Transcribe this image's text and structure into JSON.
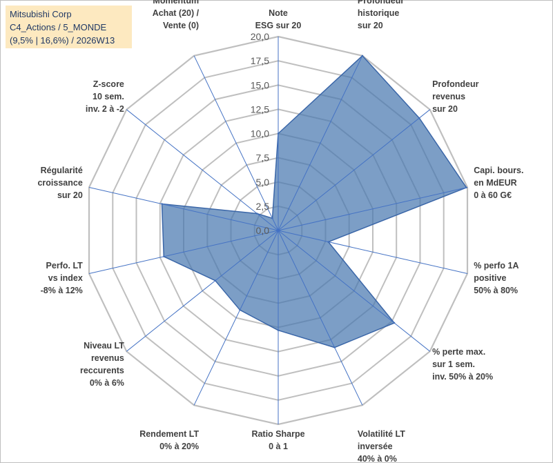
{
  "title_box": {
    "line1": "Mitsubishi Corp",
    "line2": "C4_Actions / 5_MONDE",
    "line3": "(9,5% | 16,6%) / 2026W13"
  },
  "chart_data": {
    "type": "radar",
    "title": "",
    "rlim": [
      0,
      20
    ],
    "grid": true,
    "tick_labels": [
      "0,0",
      "2,5",
      "5,0",
      "7,5",
      "10,0",
      "12,5",
      "15,0",
      "17,5",
      "20,0"
    ],
    "categories": [
      [
        "Note",
        "ESG sur 20"
      ],
      [
        "Profondeur",
        "historique",
        "sur 20"
      ],
      [
        "Profondeur",
        "revenus",
        "sur 20"
      ],
      [
        "Capi. bours.",
        "en MdEUR",
        "0 à 60 G€"
      ],
      [
        "% perfo 1A",
        "positive",
        "50% à 80%"
      ],
      [
        "% perte max.",
        "sur 1 sem.",
        "inv. 50% à 20%"
      ],
      [
        "Volatilité LT",
        "inversée",
        "40% à 0%"
      ],
      [
        "Ratio Sharpe",
        "0 à 1"
      ],
      [
        "Rendement LT",
        "0% à 20%"
      ],
      [
        "Niveau LT",
        "revenus",
        "reccurents",
        "0% à 6%"
      ],
      [
        "Perfo. LT",
        "vs index",
        "-8% à 12%"
      ],
      [
        "Régularité",
        "croissance",
        "sur 20"
      ],
      [
        "Z-score",
        "10 sem.",
        "inv. 2 à -2"
      ],
      [
        "Momentum",
        "Achat (20) /",
        "Vente (0)"
      ]
    ],
    "series": [
      {
        "values": [
          10,
          20,
          18.6,
          19.9,
          5.3,
          15.3,
          13.4,
          10.3,
          9.1,
          8.3,
          12.1,
          12.3,
          2.8,
          1.4
        ]
      }
    ],
    "colors": {
      "fill": "#4a78b0",
      "stroke": "#3a66a8",
      "spoke": "#4472c4",
      "grid": "#bfbfbf"
    }
  }
}
